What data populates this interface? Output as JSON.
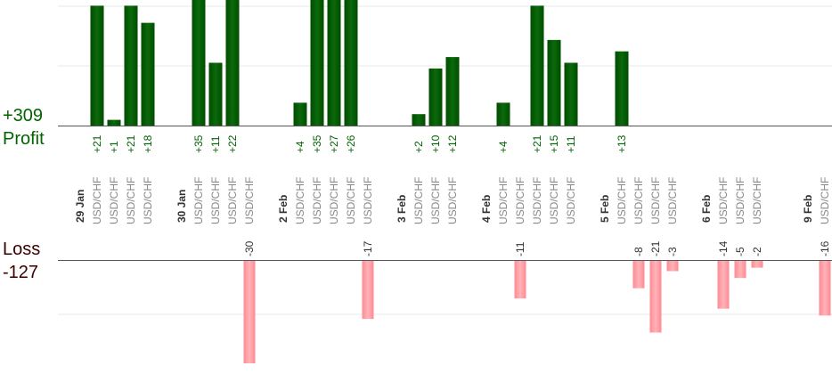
{
  "summary": {
    "profit_label": "Profit",
    "profit_total": "+309",
    "loss_label": "Loss",
    "loss_total": "-127"
  },
  "colors": {
    "profit_bar": "#0b6a0b",
    "profit_bar_dark": "#004d00",
    "profit_text": "#006400",
    "loss_bar": "#ffb3b8",
    "loss_bar_edge": "#ff8a93",
    "loss_text": "#333333",
    "axis": "#555555",
    "grid": "#e8e8e8",
    "label_text": "#888888",
    "date_text": "#333333"
  },
  "chart_data": {
    "type": "bar",
    "x": [
      {
        "kind": "date",
        "label": "29 Jan"
      },
      {
        "kind": "trade",
        "label": "USD/CHF",
        "value": 21
      },
      {
        "kind": "trade",
        "label": "USD/CHF",
        "value": 1
      },
      {
        "kind": "trade",
        "label": "USD/CHF",
        "value": 21
      },
      {
        "kind": "trade",
        "label": "USD/CHF",
        "value": 18
      },
      {
        "kind": "gap"
      },
      {
        "kind": "date",
        "label": "30 Jan"
      },
      {
        "kind": "trade",
        "label": "USD/CHF",
        "value": 35
      },
      {
        "kind": "trade",
        "label": "USD/CHF",
        "value": 11
      },
      {
        "kind": "trade",
        "label": "USD/CHF",
        "value": 22
      },
      {
        "kind": "trade",
        "label": "USD/CHF",
        "value": -30
      },
      {
        "kind": "gap"
      },
      {
        "kind": "date",
        "label": "2 Feb"
      },
      {
        "kind": "trade",
        "label": "USD/CHF",
        "value": 4
      },
      {
        "kind": "trade",
        "label": "USD/CHF",
        "value": 35
      },
      {
        "kind": "trade",
        "label": "USD/CHF",
        "value": 27
      },
      {
        "kind": "trade",
        "label": "USD/CHF",
        "value": 26
      },
      {
        "kind": "trade",
        "label": "USD/CHF",
        "value": -17
      },
      {
        "kind": "gap"
      },
      {
        "kind": "date",
        "label": "3 Feb"
      },
      {
        "kind": "trade",
        "label": "USD/CHF",
        "value": 2
      },
      {
        "kind": "trade",
        "label": "USD/CHF",
        "value": 10
      },
      {
        "kind": "trade",
        "label": "USD/CHF",
        "value": 12
      },
      {
        "kind": "gap"
      },
      {
        "kind": "date",
        "label": "4 Feb"
      },
      {
        "kind": "trade",
        "label": "USD/CHF",
        "value": 4
      },
      {
        "kind": "trade",
        "label": "USD/CHF",
        "value": -11
      },
      {
        "kind": "trade",
        "label": "USD/CHF",
        "value": 21
      },
      {
        "kind": "trade",
        "label": "USD/CHF",
        "value": 15
      },
      {
        "kind": "trade",
        "label": "USD/CHF",
        "value": 11
      },
      {
        "kind": "gap"
      },
      {
        "kind": "date",
        "label": "5 Feb"
      },
      {
        "kind": "trade",
        "label": "USD/CHF",
        "value": 13
      },
      {
        "kind": "trade",
        "label": "USD/CHF",
        "value": -8
      },
      {
        "kind": "trade",
        "label": "USD/CHF",
        "value": -21
      },
      {
        "kind": "trade",
        "label": "USD/CHF",
        "value": -3
      },
      {
        "kind": "gap"
      },
      {
        "kind": "date",
        "label": "6 Feb"
      },
      {
        "kind": "trade",
        "label": "USD/CHF",
        "value": -14
      },
      {
        "kind": "trade",
        "label": "USD/CHF",
        "value": -5
      },
      {
        "kind": "trade",
        "label": "USD/CHF",
        "value": -2
      },
      {
        "kind": "gap"
      },
      {
        "kind": "gap"
      },
      {
        "kind": "date",
        "label": "9 Feb"
      },
      {
        "kind": "trade",
        "label": "USD/CHF",
        "value": -16
      }
    ],
    "ylim_profit": [
      0,
      22
    ],
    "ylim_loss": [
      0,
      -30
    ],
    "grid": true
  }
}
